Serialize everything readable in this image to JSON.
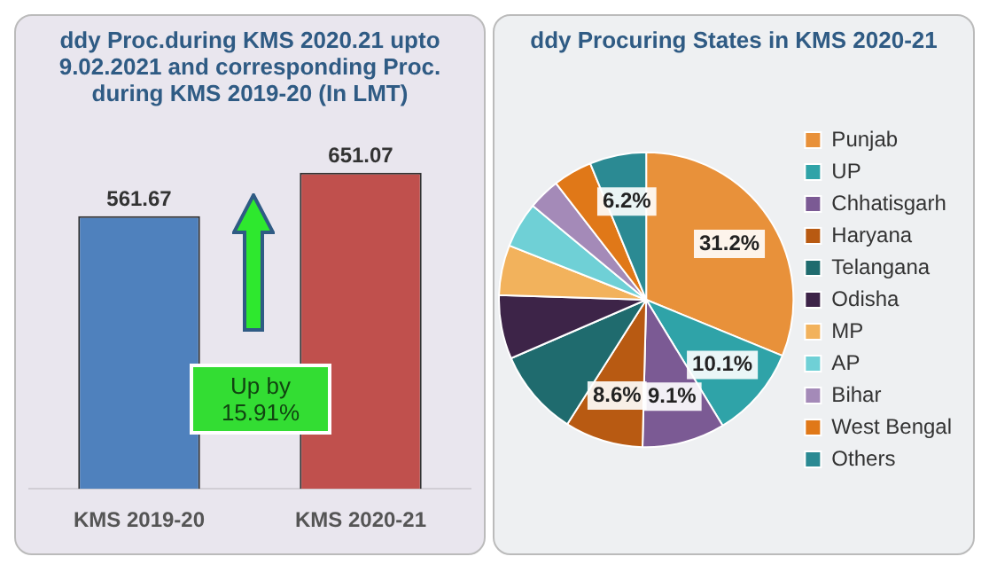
{
  "chart_data": [
    {
      "type": "bar",
      "title": "ddy Proc.during KMS 2020.21 upto 9.02.2021 and corresponding Proc. during KMS 2019-20 (In LMT)",
      "categories": [
        "KMS 2019-20",
        "KMS 2020-21"
      ],
      "values": [
        561.67,
        651.07
      ],
      "colors": [
        "#4f81bd",
        "#c0504d"
      ],
      "data_labels": true,
      "annotations": [
        "Up by 15.91%"
      ]
    },
    {
      "type": "pie",
      "title": "ddy Procuring States in KMS 2020-21",
      "categories": [
        "Punjab",
        "UP",
        "Chhatisgarh",
        "Haryana",
        "Telangana",
        "Odisha",
        "MP",
        "AP",
        "Bihar",
        "West Bengal",
        "Others"
      ],
      "values": [
        31.2,
        10.1,
        9.1,
        8.6,
        9.5,
        7.0,
        5.5,
        5.0,
        3.5,
        4.3,
        6.2
      ],
      "colors": [
        "#e8913a",
        "#2fa3a8",
        "#7b5a94",
        "#b85a12",
        "#1f6b6e",
        "#3d2448",
        "#f2b25c",
        "#6fd0d6",
        "#a48ab8",
        "#e07818",
        "#2b8a93"
      ],
      "value_labels": [
        "31.2%",
        "10.1%",
        "9.1%",
        "8.6%",
        null,
        null,
        null,
        null,
        null,
        null,
        "6.2%"
      ],
      "legend": "right"
    }
  ]
}
